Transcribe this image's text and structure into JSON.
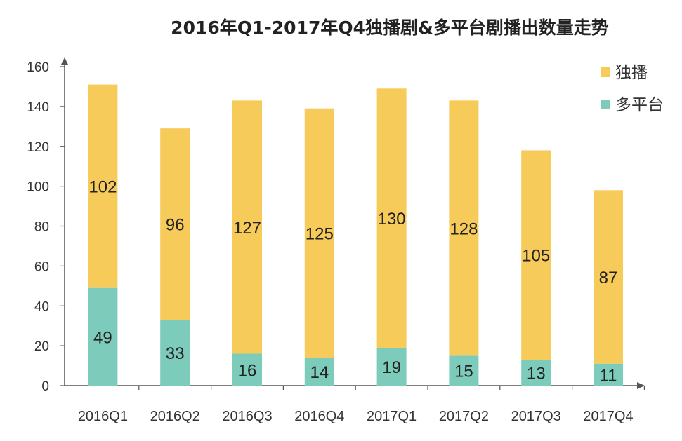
{
  "chart_data": {
    "type": "bar",
    "stacked": true,
    "title": "2016年Q1-2017年Q4独播剧&多平台剧播出数量走势",
    "categories": [
      "2016Q1",
      "2016Q2",
      "2016Q3",
      "2016Q4",
      "2017Q1",
      "2017Q2",
      "2017Q3",
      "2017Q4"
    ],
    "series": [
      {
        "name": "多平台",
        "color": "#7dcbbb",
        "values": [
          49,
          33,
          16,
          14,
          19,
          15,
          13,
          11
        ]
      },
      {
        "name": "独播",
        "color": "#f7cb5a",
        "values": [
          102,
          96,
          127,
          125,
          130,
          128,
          105,
          87
        ]
      }
    ],
    "ylim": [
      0,
      160
    ],
    "yticks": [
      0,
      20,
      40,
      60,
      80,
      100,
      120,
      140,
      160
    ],
    "legend_position": "top-right",
    "legend_order": [
      "独播",
      "多平台"
    ],
    "grid": false,
    "xlabel": "",
    "ylabel": ""
  }
}
